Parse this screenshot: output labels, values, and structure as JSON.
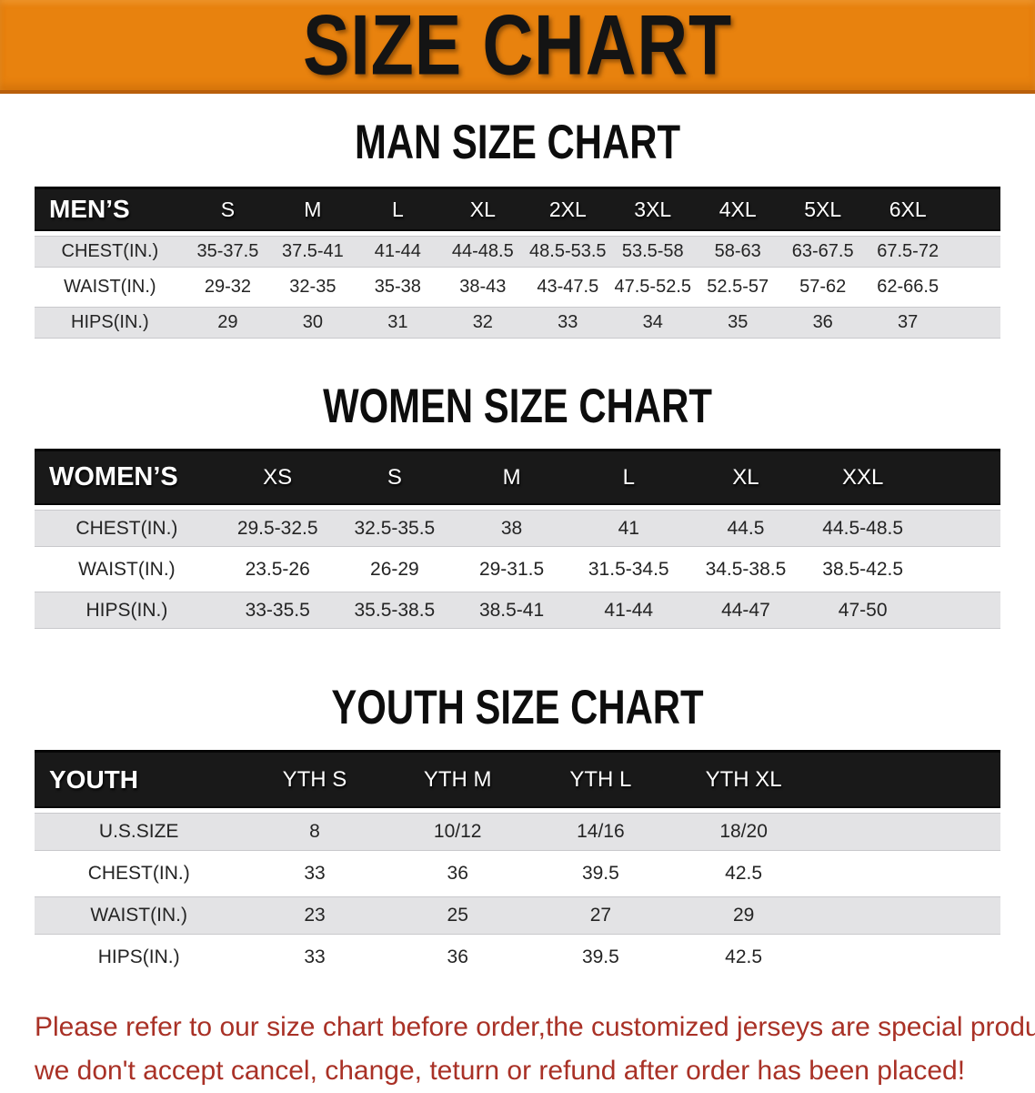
{
  "banner": {
    "title": "SIZE CHART",
    "background_color": "#e8820e"
  },
  "sections": [
    {
      "id": "men",
      "heading": "MAN SIZE CHART",
      "corner": "MEN’S",
      "columns": [
        "S",
        "M",
        "L",
        "XL",
        "2XL",
        "3XL",
        "4XL",
        "5XL",
        "6XL"
      ],
      "rows": [
        {
          "label": "CHEST(IN.)",
          "values": [
            "35-37.5",
            "37.5-41",
            "41-44",
            "44-48.5",
            "48.5-53.5",
            "53.5-58",
            "58-63",
            "63-67.5",
            "67.5-72"
          ]
        },
        {
          "label": "WAIST(IN.)",
          "values": [
            "29-32",
            "32-35",
            "35-38",
            "38-43",
            "43-47.5",
            "47.5-52.5",
            "52.5-57",
            "57-62",
            "62-66.5"
          ]
        },
        {
          "label": "HIPS(IN.)",
          "values": [
            "29",
            "30",
            "31",
            "32",
            "33",
            "34",
            "35",
            "36",
            "37"
          ]
        }
      ]
    },
    {
      "id": "women",
      "heading": "WOMEN SIZE CHART",
      "corner": "WOMEN’S",
      "columns": [
        "XS",
        "S",
        "M",
        "L",
        "XL",
        "XXL"
      ],
      "rows": [
        {
          "label": "CHEST(IN.)",
          "values": [
            "29.5-32.5",
            "32.5-35.5",
            "38",
            "41",
            "44.5",
            "44.5-48.5"
          ]
        },
        {
          "label": "WAIST(IN.)",
          "values": [
            "23.5-26",
            "26-29",
            "29-31.5",
            "31.5-34.5",
            "34.5-38.5",
            "38.5-42.5"
          ]
        },
        {
          "label": "HIPS(IN.)",
          "values": [
            "33-35.5",
            "35.5-38.5",
            "38.5-41",
            "41-44",
            "44-47",
            "47-50"
          ]
        }
      ]
    },
    {
      "id": "youth",
      "heading": "YOUTH SIZE CHART",
      "corner": "YOUTH",
      "columns": [
        "YTH S",
        "YTH M",
        "YTH L",
        "YTH XL"
      ],
      "rows": [
        {
          "label": "U.S.SIZE",
          "values": [
            "8",
            "10/12",
            "14/16",
            "18/20"
          ]
        },
        {
          "label": "CHEST(IN.)",
          "values": [
            "33",
            "36",
            "39.5",
            "42.5"
          ]
        },
        {
          "label": "WAIST(IN.)",
          "values": [
            "23",
            "25",
            "27",
            "29"
          ]
        },
        {
          "label": "HIPS(IN.)",
          "values": [
            "33",
            "36",
            "39.5",
            "42.5"
          ]
        }
      ]
    }
  ],
  "footer": {
    "line1": "Please refer to our size chart before order,the customized jerseys are special products,",
    "line2": "we don't accept cancel, change, teturn or refund after order has been placed!",
    "text_color": "#a93126"
  }
}
